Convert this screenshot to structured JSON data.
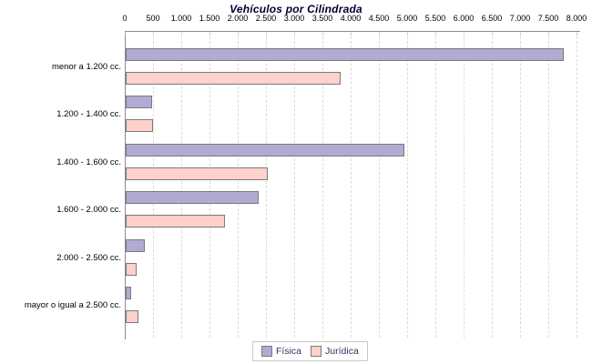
{
  "chart_data": {
    "type": "bar",
    "orientation": "horizontal",
    "title": "Vehículos por Cilindrada",
    "categories": [
      "menor a 1.200 cc.",
      "1.200 - 1.400 cc.",
      "1.400 - 1.600 cc.",
      "1.600 - 2.000 cc.",
      "2.000 - 2.500 cc.",
      "mayor o igual a 2.500 cc."
    ],
    "series": [
      {
        "name": "Física",
        "color": "#b2aad2",
        "values": [
          7750,
          460,
          4930,
          2360,
          340,
          90
        ]
      },
      {
        "name": "Jurídica",
        "color": "#ffd1cb",
        "values": [
          3800,
          480,
          2510,
          1760,
          200,
          220
        ]
      }
    ],
    "x_axis": {
      "min": 0,
      "max": 8000,
      "tick_step": 500,
      "position": "top",
      "tick_labels": [
        "0",
        "500",
        "1.000",
        "1.500",
        "2.000",
        "2.500",
        "3.000",
        "3.500",
        "4.000",
        "4.500",
        "5.000",
        "5.500",
        "6.000",
        "6.500",
        "7.000",
        "7.500",
        "8.000"
      ]
    },
    "grid": "vertical-dashed",
    "legend": {
      "position": "bottom",
      "entries": [
        "Física",
        "Jurídica"
      ]
    },
    "colors": {
      "bar_border": "#7a7a7a",
      "axis_line": "#8c8c8c",
      "tick_mark": "#b0b0b0",
      "gridline": "#dcdcdc",
      "title_text": "#000033",
      "legend_text": "#333366",
      "label_text": "#000000",
      "legend_border": "#c8c8c8"
    }
  }
}
